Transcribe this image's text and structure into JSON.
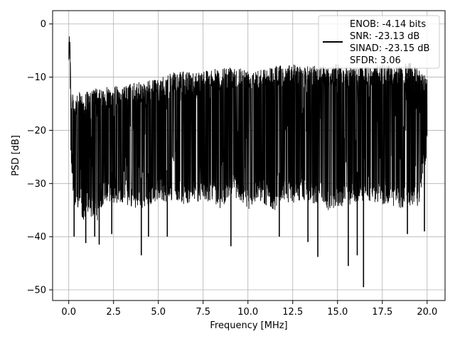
{
  "chart_data": {
    "type": "line",
    "title": "",
    "xlabel": "Frequency [MHz]",
    "ylabel": "PSD [dB]",
    "xlim": [
      -0.9,
      21.0
    ],
    "ylim": [
      -52.0,
      2.5
    ],
    "x_ticks": [
      0.0,
      2.5,
      5.0,
      7.5,
      10.0,
      12.5,
      15.0,
      17.5,
      20.0
    ],
    "x_tick_labels": [
      "0.0",
      "2.5",
      "5.0",
      "7.5",
      "10.0",
      "12.5",
      "15.0",
      "17.5",
      "20.0"
    ],
    "y_ticks": [
      0,
      -10,
      -20,
      -30,
      -40,
      -50
    ],
    "y_tick_labels": [
      "0",
      "−10",
      "−20",
      "−30",
      "−40",
      "−50"
    ],
    "grid": true,
    "line_color": "#000000",
    "legend": {
      "placement": "top-right",
      "entries": [
        "ENOB: -4.14 bits",
        "SNR: -23.13 dB",
        "SINAD: -23.15 dB",
        "SFDR: 3.06"
      ]
    },
    "series": [
      {
        "x": [
          0.0,
          0.04,
          0.08,
          0.12,
          0.2,
          0.3,
          0.4,
          0.5,
          0.65,
          0.8,
          1.0,
          1.2,
          1.4,
          1.6,
          1.8,
          2.0,
          2.5,
          3.0,
          3.5,
          4.0,
          4.5,
          5.0,
          5.5,
          6.0,
          6.5,
          7.0,
          7.5,
          8.0,
          8.5,
          9.0,
          9.5,
          10.0,
          10.5,
          11.0,
          11.5,
          12.0,
          12.5,
          13.0,
          13.5,
          14.0,
          14.5,
          15.0,
          15.5,
          16.0,
          16.5,
          17.0,
          17.5,
          18.0,
          18.5,
          19.0,
          19.5,
          20.0
        ],
        "upper": [
          -3.5,
          0.0,
          -3.0,
          -12.0,
          -13.0,
          -14.0,
          -13.5,
          -13.5,
          -12.5,
          -13.5,
          -12.5,
          -13.0,
          -12.0,
          -12.0,
          -12.5,
          -12.0,
          -11.5,
          -12.0,
          -11.0,
          -11.0,
          -10.5,
          -10.5,
          -9.5,
          -9.0,
          -9.0,
          -9.0,
          -8.5,
          -8.5,
          -8.5,
          -8.0,
          -8.0,
          -8.5,
          -8.0,
          -8.5,
          -7.5,
          -8.0,
          -7.5,
          -8.0,
          -8.0,
          -7.5,
          -8.0,
          -7.5,
          -8.0,
          -8.0,
          -8.0,
          -8.0,
          -7.5,
          -8.0,
          -8.0,
          -7.0,
          -8.5,
          -9.5
        ],
        "lower": [
          -8.0,
          -5.0,
          -12.0,
          -26.0,
          -29.0,
          -35.0,
          -36.5,
          -35.0,
          -34.0,
          -38.0,
          -35.0,
          -37.0,
          -36.0,
          -37.0,
          -35.0,
          -33.0,
          -34.0,
          -33.5,
          -34.5,
          -35.0,
          -34.0,
          -33.0,
          -33.5,
          -33.0,
          -34.0,
          -33.0,
          -34.0,
          -33.0,
          -35.0,
          -32.0,
          -33.0,
          -35.0,
          -33.0,
          -34.0,
          -35.0,
          -33.0,
          -34.0,
          -33.0,
          -34.0,
          -33.5,
          -35.0,
          -35.0,
          -34.0,
          -34.0,
          -33.0,
          -33.5,
          -34.0,
          -34.0,
          -35.0,
          -34.0,
          -35.0,
          -24.0
        ],
        "dips": [
          {
            "x": 0.3,
            "y": -40.0
          },
          {
            "x": 0.95,
            "y": -41.2
          },
          {
            "x": 1.45,
            "y": -40.0
          },
          {
            "x": 1.7,
            "y": -41.5
          },
          {
            "x": 2.4,
            "y": -39.5
          },
          {
            "x": 4.05,
            "y": -43.5
          },
          {
            "x": 4.45,
            "y": -40.0
          },
          {
            "x": 5.5,
            "y": -40.0
          },
          {
            "x": 9.05,
            "y": -41.8
          },
          {
            "x": 11.75,
            "y": -40.0
          },
          {
            "x": 13.35,
            "y": -41.0
          },
          {
            "x": 13.9,
            "y": -43.8
          },
          {
            "x": 15.6,
            "y": -45.5
          },
          {
            "x": 16.1,
            "y": -43.5
          },
          {
            "x": 16.45,
            "y": -49.5
          },
          {
            "x": 18.9,
            "y": -39.5
          },
          {
            "x": 19.85,
            "y": -39.0
          }
        ]
      }
    ]
  }
}
